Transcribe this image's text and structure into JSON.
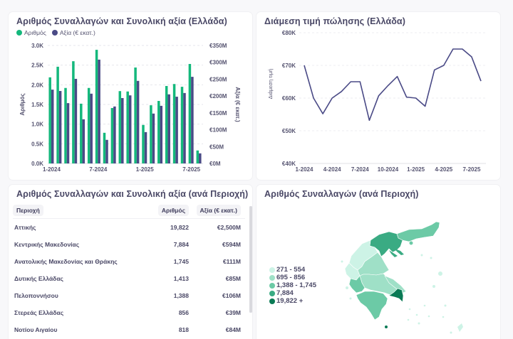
{
  "panels": {
    "bar_panel": {
      "title": "Αριθμός Συναλλαγών και Συνολική αξία (Ελλάδα)",
      "legend": [
        {
          "label": "Αριθμός",
          "color": "#14b87c"
        },
        {
          "label": "Αξία (€ εκατ.)",
          "color": "#4a4a86"
        }
      ]
    },
    "line_panel": {
      "title": "Διάμεση τιμή πώλησης (Ελλάδα)"
    },
    "table_panel": {
      "title": "Αριθμός Συναλλαγών και Συνολική αξία (ανά Περιοχή)",
      "columns": [
        "Περιοχή",
        "Αριθμός",
        "Αξία (€ εκατ.)"
      ],
      "rows": [
        [
          "Αττικής",
          "19,822",
          "€2,500M"
        ],
        [
          "Κεντρικής Μακεδονίας",
          "7,884",
          "€594M"
        ],
        [
          "Ανατολικής Μακεδονίας και Θράκης",
          "1,745",
          "€111M"
        ],
        [
          "Δυτικής Ελλάδας",
          "1,413",
          "€85M"
        ],
        [
          "Πελοποννήσου",
          "1,388",
          "€106M"
        ],
        [
          "Στερεάς Ελλάδας",
          "856",
          "€39M"
        ],
        [
          "Νοτίου Αιγαίου",
          "818",
          "€84M"
        ]
      ]
    },
    "map_panel": {
      "title": "Αριθμός Συναλλαγών (ανά Περιοχή)",
      "legend": [
        {
          "label": "271 - 554",
          "color": "#cdf3e6"
        },
        {
          "label": "695 - 856",
          "color": "#9fe0c7"
        },
        {
          "label": "1,388 - 1,745",
          "color": "#6ccaa6"
        },
        {
          "label": "7,884",
          "color": "#3aab83"
        },
        {
          "label": "19,822 +",
          "color": "#0a7a55"
        }
      ]
    }
  },
  "chart_data": [
    {
      "type": "bar",
      "title": "Αριθμός Συναλλαγών και Συνολική αξία (Ελλάδα)",
      "categories": [
        "1-2024",
        "2-2024",
        "3-2024",
        "4-2024",
        "5-2024",
        "6-2024",
        "7-2024",
        "8-2024",
        "9-2024",
        "10-2024",
        "11-2024",
        "12-2024",
        "1-2025",
        "2-2025",
        "3-2025",
        "4-2025",
        "5-2025",
        "6-2025",
        "7-2025",
        "8-2025"
      ],
      "x_tick_labels": [
        "1-2024",
        "7-2024",
        "1-2025",
        "7-2025"
      ],
      "series": [
        {
          "name": "Αριθμός",
          "axis": "left",
          "color": "#14b87c",
          "values": [
            2190,
            2460,
            1920,
            2600,
            1520,
            1920,
            2890,
            780,
            1410,
            1840,
            1830,
            2440,
            980,
            1480,
            1590,
            1970,
            2020,
            1950,
            2530,
            330
          ]
        },
        {
          "name": "Αξία (€ εκατ.)",
          "axis": "right",
          "color": "#4a4a86",
          "values": [
            219,
            215,
            179,
            251,
            131,
            207,
            308,
            70,
            169,
            194,
            202,
            245,
            93,
            148,
            171,
            205,
            198,
            209,
            257,
            30
          ]
        }
      ],
      "ylabel": "Αριθμός",
      "ylim": [
        0,
        3000
      ],
      "y_ticks": [
        "0.0K",
        "0.5K",
        "1.0K",
        "1.5K",
        "2.0K",
        "2.5K",
        "3.0K"
      ],
      "y2label": "Αξία (€ εκατ.)",
      "y2lim": [
        0,
        350
      ],
      "y2_ticks": [
        "€0M",
        "€50M",
        "€100M",
        "€150M",
        "€200M",
        "€250M",
        "€300M",
        "€350M"
      ],
      "grid": true,
      "legend": "top-left"
    },
    {
      "type": "line",
      "title": "Διάμεση τιμή πώλησης (Ελλάδα)",
      "x": [
        "1-2024",
        "2-2024",
        "3-2024",
        "4-2024",
        "5-2024",
        "6-2024",
        "7-2024",
        "8-2024",
        "9-2024",
        "10-2024",
        "11-2024",
        "12-2024",
        "1-2025",
        "2-2025",
        "3-2025",
        "4-2025",
        "5-2025",
        "6-2025",
        "7-2025",
        "8-2025"
      ],
      "x_tick_labels": [
        "1-2024",
        "4-2024",
        "7-2024",
        "10-2024",
        "1-2025",
        "4-2025",
        "7-2025"
      ],
      "series": [
        {
          "name": "Διάμεση τιμή",
          "color": "#4a4a86",
          "values": [
            70000,
            60000,
            55200,
            60000,
            62000,
            65000,
            65000,
            53200,
            60700,
            63800,
            66600,
            60300,
            60000,
            57500,
            68600,
            70000,
            75000,
            75000,
            72600,
            65200
          ]
        }
      ],
      "ylabel": "Διάμεση τιμή",
      "ylim": [
        40000,
        80000
      ],
      "y_ticks": [
        "€40K",
        "€50K",
        "€60K",
        "€70K",
        "€80K"
      ],
      "grid": true
    }
  ]
}
